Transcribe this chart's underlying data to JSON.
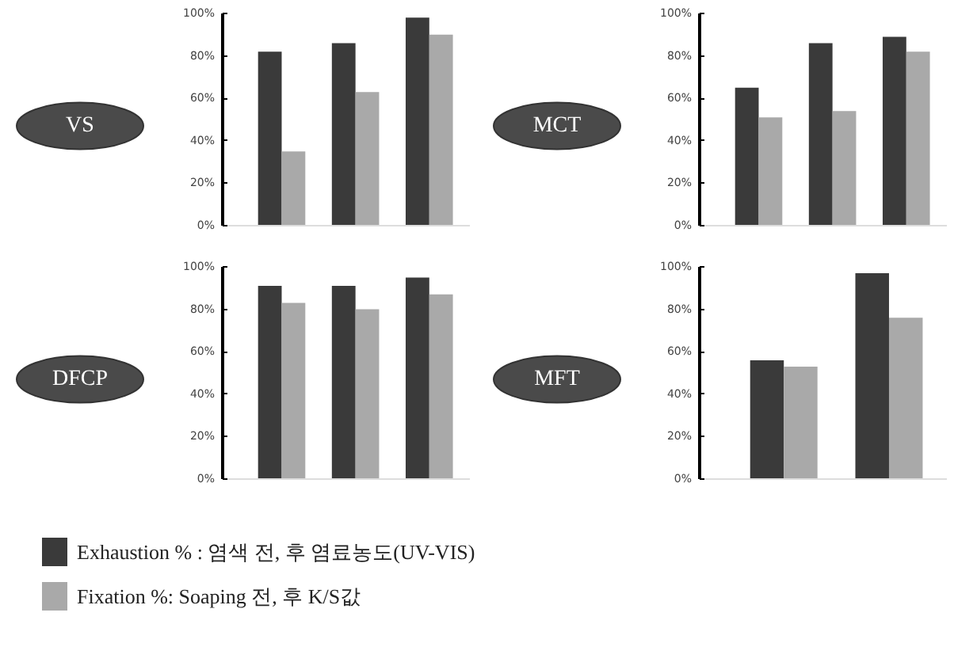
{
  "chart_data": [
    {
      "type": "bar",
      "title": "VS",
      "categories": [
        null,
        null,
        null
      ],
      "ylim": [
        0,
        100
      ],
      "yticks": [
        {
          "value": 0,
          "label": "0%"
        },
        {
          "value": 20,
          "label": "20%"
        },
        {
          "value": 40,
          "label": "40%"
        },
        {
          "value": 60,
          "label": "60%"
        },
        {
          "value": 80,
          "label": "80%"
        },
        {
          "value": 100,
          "label": "100%"
        }
      ],
      "tick_labels": "y",
      "legend": "bottom",
      "series": [
        {
          "name": "Exhaustion % : 염색 전, 후  염료농도(UV-VIS)",
          "color": "#3a3a3a",
          "values": [
            82,
            86,
            98
          ]
        },
        {
          "name": "Fixation %: Soaping 전, 후 K/S값",
          "color": "#a9a9a9",
          "values": [
            35,
            63,
            90
          ]
        }
      ]
    },
    {
      "type": "bar",
      "title": "MCT",
      "categories": [
        null,
        null,
        null
      ],
      "ylim": [
        0,
        100
      ],
      "yticks": [
        {
          "value": 0,
          "label": "0%"
        },
        {
          "value": 20,
          "label": "20%"
        },
        {
          "value": 40,
          "label": "40%"
        },
        {
          "value": 60,
          "label": "60%"
        },
        {
          "value": 80,
          "label": "80%"
        },
        {
          "value": 100,
          "label": "100%"
        }
      ],
      "tick_labels": "y",
      "series": [
        {
          "color": "#3a3a3a",
          "values": [
            65,
            86,
            89
          ]
        },
        {
          "color": "#a9a9a9",
          "values": [
            51,
            54,
            82
          ]
        }
      ]
    },
    {
      "type": "bar",
      "title": "DFCP",
      "categories": [
        null,
        null,
        null
      ],
      "ylim": [
        0,
        100
      ],
      "yticks": [
        {
          "value": 0,
          "label": "0%"
        },
        {
          "value": 20,
          "label": "20%"
        },
        {
          "value": 40,
          "label": "40%"
        },
        {
          "value": 60,
          "label": "60%"
        },
        {
          "value": 80,
          "label": "80%"
        },
        {
          "value": 100,
          "label": "100%"
        }
      ],
      "tick_labels": "y",
      "series": [
        {
          "color": "#3a3a3a",
          "values": [
            91,
            91,
            95
          ]
        },
        {
          "color": "#a9a9a9",
          "values": [
            83,
            80,
            87
          ]
        }
      ]
    },
    {
      "type": "bar",
      "title": "MFT",
      "categories": [
        null,
        null
      ],
      "ylim": [
        0,
        100
      ],
      "yticks": [
        {
          "value": 0,
          "label": "0%"
        },
        {
          "value": 20,
          "label": "20%"
        },
        {
          "value": 40,
          "label": "40%"
        },
        {
          "value": 60,
          "label": "60%"
        },
        {
          "value": 80,
          "label": "80%"
        },
        {
          "value": 100,
          "label": "100%"
        }
      ],
      "tick_labels": "y",
      "series": [
        {
          "color": "#3a3a3a",
          "values": [
            56,
            97
          ]
        },
        {
          "color": "#a9a9a9",
          "values": [
            53,
            76
          ]
        }
      ]
    }
  ]
}
